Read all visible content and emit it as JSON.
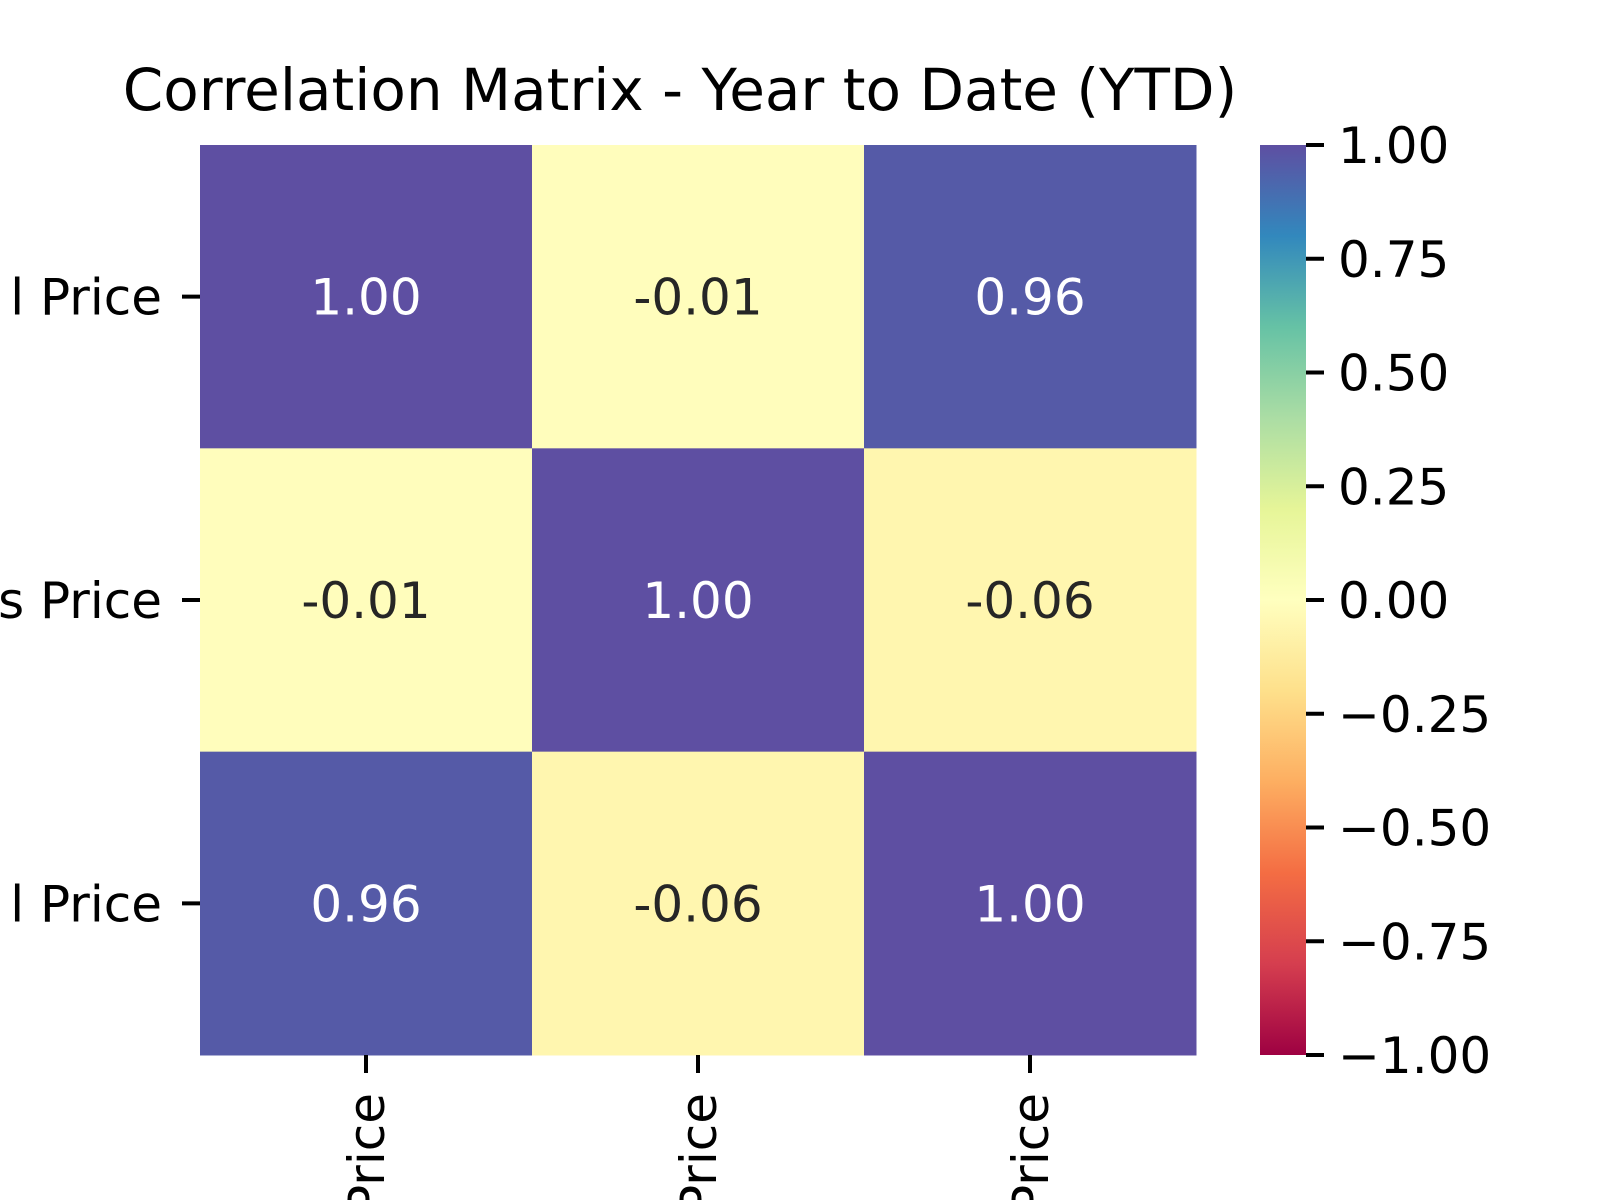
{
  "chart_data": {
    "type": "heatmap",
    "title": "Correlation Matrix - Year to Date (YTD)",
    "row_labels": [
      "l Price",
      "s Price",
      "l Price"
    ],
    "col_labels": [
      "Price",
      "Price",
      "Price"
    ],
    "values": [
      [
        1.0,
        -0.01,
        0.96
      ],
      [
        -0.01,
        1.0,
        -0.06
      ],
      [
        0.96,
        -0.06,
        1.0
      ]
    ],
    "value_labels": [
      [
        "1.00",
        "-0.01",
        "0.96"
      ],
      [
        "-0.01",
        "1.00",
        "-0.06"
      ],
      [
        "0.96",
        "-0.06",
        "1.00"
      ]
    ],
    "colormap": "Spectral",
    "vmin": -1,
    "vmax": 1,
    "colorbar": {
      "ticks": [
        1.0,
        0.75,
        0.5,
        0.25,
        0.0,
        -0.25,
        -0.5,
        -0.75,
        -1.0
      ],
      "tick_labels": [
        "1.00",
        "0.75",
        "0.50",
        "0.25",
        "0.00",
        "−0.25",
        "−0.50",
        "−0.75",
        "−1.00"
      ]
    },
    "colors": {
      "annotation_dark": "#262626",
      "annotation_light": "#ffffff"
    }
  }
}
